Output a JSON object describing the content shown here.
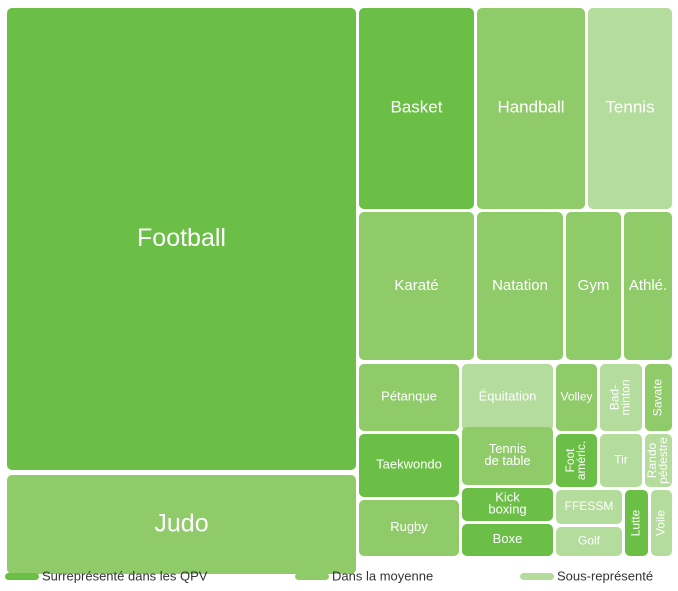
{
  "chart_data": {
    "type": "treemap",
    "groups": [
      {
        "name": "Surreprésenté dans les QPV",
        "color": "#6bbf46"
      },
      {
        "name": "Dans la moyenne",
        "color": "#8fcb69"
      },
      {
        "name": "Sous-représenté",
        "color": "#b4dc9c"
      }
    ],
    "items": [
      {
        "label": "Football",
        "group": 0
      },
      {
        "label": "Judo",
        "group": 1
      },
      {
        "label": "Basket",
        "group": 0
      },
      {
        "label": "Handball",
        "group": 1
      },
      {
        "label": "Tennis",
        "group": 2
      },
      {
        "label": "Karaté",
        "group": 1
      },
      {
        "label": "Natation",
        "group": 1
      },
      {
        "label": "Gym",
        "group": 1
      },
      {
        "label": "Athlé.",
        "group": 1
      },
      {
        "label": "Pétanque",
        "group": 1
      },
      {
        "label": "Équitation",
        "group": 2
      },
      {
        "label": "Volley",
        "group": 1
      },
      {
        "label": "Bad-\nminton",
        "group": 2
      },
      {
        "label": "Savate",
        "group": 1
      },
      {
        "label": "Taekwondo",
        "group": 0
      },
      {
        "label": "Tennis\nde table",
        "group": 1
      },
      {
        "label": "Kick\nboxing",
        "group": 0
      },
      {
        "label": "Boxe",
        "group": 0
      },
      {
        "label": "Foot\naméric.",
        "group": 0
      },
      {
        "label": "Tir",
        "group": 2
      },
      {
        "label": "Rando\npédestre",
        "group": 2
      },
      {
        "label": "Rugby",
        "group": 1
      },
      {
        "label": "FFESSM",
        "group": 2
      },
      {
        "label": "Golf",
        "group": 2
      },
      {
        "label": "Lutte",
        "group": 0
      },
      {
        "label": "Voile",
        "group": 2
      }
    ]
  }
}
